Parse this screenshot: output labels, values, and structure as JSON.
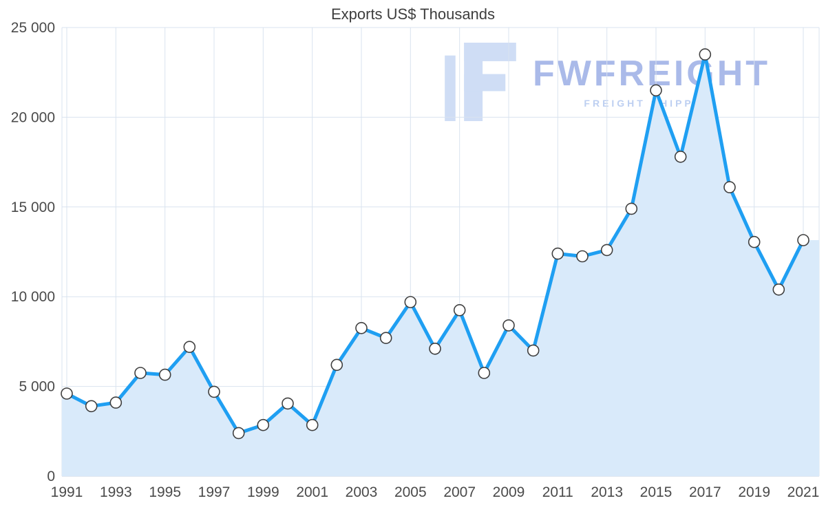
{
  "title": "Exports US$ Thousands",
  "watermark": {
    "brand": "FWFREIGHT",
    "subtitle": "FREIGHT SHIPPING",
    "logo_icon": "fwfreight-logo-icon"
  },
  "colors": {
    "line": "#1f9ff2",
    "area": "#d9eafa",
    "grid": "#d9e3ef",
    "axis_line": "#c6d2e0",
    "axis_text": "#4a4a4a",
    "marker_fill": "#ffffff",
    "marker_stroke": "#3f3f3f",
    "watermark_logo": "#c7d8f4",
    "watermark_brand": "#a6b7e8",
    "watermark_subtitle": "#bacdf1"
  },
  "chart_data": {
    "type": "area",
    "title": "Exports US$ Thousands",
    "xlabel": "",
    "ylabel": "",
    "x": [
      1991,
      1992,
      1993,
      1994,
      1995,
      1996,
      1997,
      1998,
      1999,
      2000,
      2001,
      2002,
      2003,
      2004,
      2005,
      2006,
      2007,
      2008,
      2009,
      2010,
      2011,
      2012,
      2013,
      2014,
      2015,
      2016,
      2017,
      2018,
      2019,
      2020,
      2021
    ],
    "values": [
      4600,
      3900,
      4100,
      5750,
      5650,
      7200,
      4700,
      2400,
      2850,
      4050,
      2850,
      6200,
      8250,
      7700,
      9700,
      7100,
      9250,
      5750,
      8400,
      7000,
      12400,
      12250,
      12600,
      14900,
      21500,
      17800,
      23500,
      16100,
      13050,
      10400,
      13150
    ],
    "ylim": [
      0,
      25000
    ],
    "y_ticks": [
      0,
      5000,
      10000,
      15000,
      20000,
      25000
    ],
    "y_tick_labels": [
      "0",
      "5 000",
      "10 000",
      "15 000",
      "20 000",
      "25 000"
    ],
    "x_label_step": 2,
    "x_tick_labels": [
      "1991",
      "1993",
      "1995",
      "1997",
      "1999",
      "2001",
      "2003",
      "2005",
      "2007",
      "2009",
      "2011",
      "2013",
      "2015",
      "2017",
      "2019",
      "2021"
    ],
    "grid": true,
    "legend": "none",
    "marker": "circle",
    "series_name": "Exports"
  }
}
